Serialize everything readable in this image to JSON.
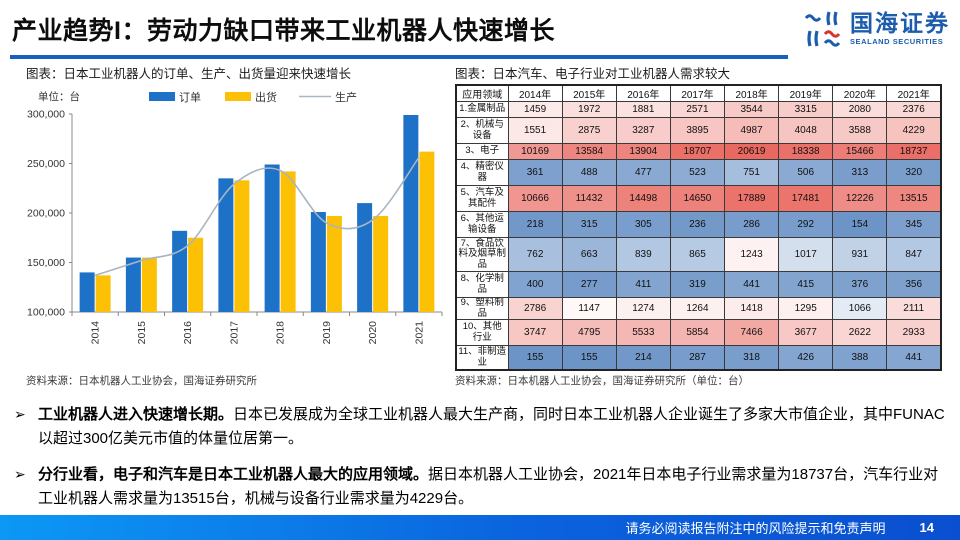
{
  "header": {
    "title": "产业趋势I：劳动力缺口带来工业机器人快速增长",
    "logo_text": "国海证券",
    "logo_subtext": "SEALAND SECURITIES"
  },
  "figures": {
    "left_caption": "图表：日本工业机器人的订单、生产、出货量迎来快速增长",
    "left_source": "资料来源：日本机器人工业协会，国海证券研究所",
    "right_caption": "图表：日本汽车、电子行业对工业机器人需求较大",
    "right_source": "资料来源：日本机器人工业协会，国海证券研究所（单位：台）"
  },
  "chart_data": [
    {
      "type": "bar",
      "title": "日本工业机器人的订单、生产、出货量迎来快速增长",
      "unit_label": "单位：台",
      "categories": [
        "2014",
        "2015",
        "2016",
        "2017",
        "2018",
        "2019",
        "2020",
        "2021"
      ],
      "series": [
        {
          "name": "订单",
          "kind": "bar",
          "color": "#1d72c8",
          "values": [
            140000,
            155000,
            182000,
            235000,
            249000,
            201000,
            210000,
            299000
          ]
        },
        {
          "name": "出货",
          "kind": "bar",
          "color": "#fcc105",
          "values": [
            137000,
            155000,
            175000,
            233000,
            242000,
            197000,
            197000,
            262000
          ]
        },
        {
          "name": "生产",
          "kind": "line",
          "color": "#a8b5c3",
          "values": [
            137000,
            152000,
            167000,
            229000,
            243000,
            190000,
            193000,
            256000
          ]
        }
      ],
      "ylim": [
        100000,
        300000
      ],
      "yticks": [
        100000,
        150000,
        200000,
        250000,
        300000
      ],
      "grid": false,
      "legend_position": "top"
    },
    {
      "type": "heatmap",
      "title": "日本汽车、电子行业对工业机器人需求较大",
      "unit": "台",
      "columns": [
        "应用领域",
        "2014年",
        "2015年",
        "2016年",
        "2017年",
        "2018年",
        "2019年",
        "2020年",
        "2021年"
      ],
      "rows": [
        {
          "label": "1.金属制品",
          "values": [
            1459,
            1972,
            1881,
            2571,
            3544,
            3315,
            2080,
            2376
          ]
        },
        {
          "label": "2、机械与设备",
          "values": [
            1551,
            2875,
            3287,
            3895,
            4987,
            4048,
            3588,
            4229
          ]
        },
        {
          "label": "3、电子",
          "values": [
            10169,
            13584,
            13904,
            18707,
            20619,
            18338,
            15466,
            18737
          ]
        },
        {
          "label": "4、精密仪器",
          "values": [
            361,
            488,
            477,
            523,
            751,
            506,
            313,
            320
          ]
        },
        {
          "label": "5、汽车及其配件",
          "values": [
            10666,
            11432,
            14498,
            14650,
            17889,
            17481,
            12226,
            13515
          ]
        },
        {
          "label": "6、其他运输设备",
          "values": [
            218,
            315,
            305,
            236,
            286,
            292,
            154,
            345
          ]
        },
        {
          "label": "7、食品饮料及烟草制品",
          "values": [
            762,
            663,
            839,
            865,
            1243,
            1017,
            931,
            847
          ]
        },
        {
          "label": "8、化学制品",
          "values": [
            400,
            277,
            411,
            319,
            441,
            415,
            376,
            356
          ]
        },
        {
          "label": "9、塑料制品",
          "values": [
            2786,
            1147,
            1274,
            1264,
            1418,
            1295,
            1066,
            2111
          ]
        },
        {
          "label": "10、其他行业",
          "values": [
            3747,
            4795,
            5533,
            5854,
            7466,
            3677,
            2622,
            2933
          ]
        },
        {
          "label": "11、非制造业",
          "values": [
            155,
            155,
            214,
            287,
            318,
            426,
            388,
            441
          ]
        }
      ],
      "heatmap_colors": {
        "low": "#6d94c7",
        "mid": "#ffffff",
        "high": "#e96860",
        "midpoint": 1100
      }
    }
  ],
  "bullets": [
    {
      "marker": "➢",
      "bold": "工业机器人进入快速增长期。",
      "text": "日本已发展成为全球工业机器人最大生产商，同时日本工业机器人企业诞生了多家大市值企业，其中FUNAC以超过300亿美元市值的体量位居第一。"
    },
    {
      "marker": "➢",
      "bold": "分行业看，电子和汽车是日本工业机器人最大的应用领域。",
      "text": "据日本机器人工业协会，2021年日本电子行业需求量为18737台，汽车行业对工业机器人需求量为13515台，机械与设备行业需求量为4229台。"
    }
  ],
  "footer": {
    "disclaimer": "请务必阅读报告附注中的风险提示和免责声明",
    "page": "14"
  }
}
